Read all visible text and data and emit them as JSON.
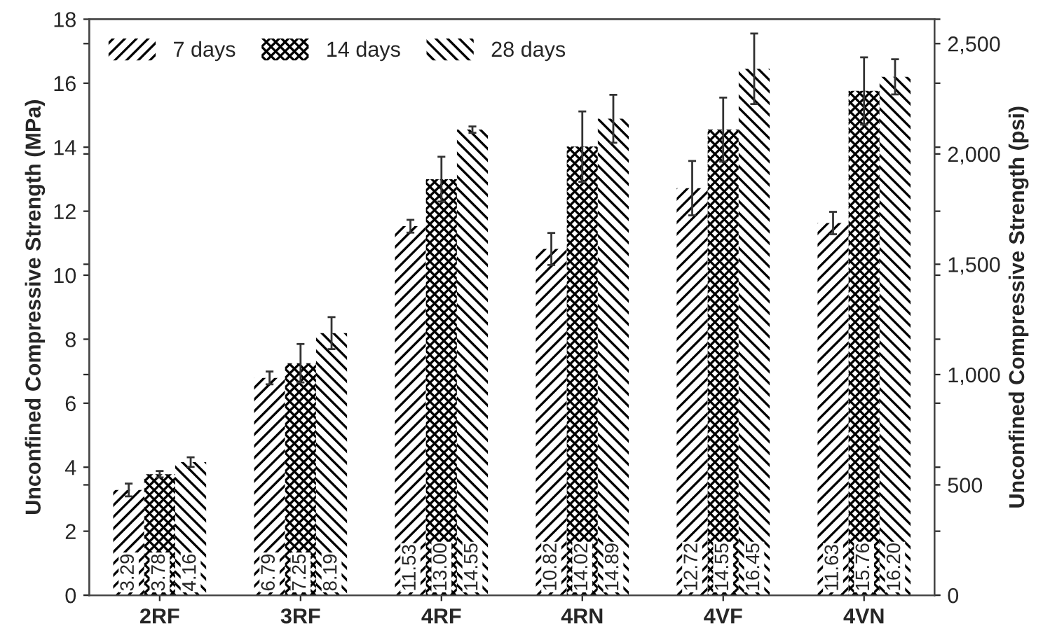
{
  "chart_data": {
    "type": "bar",
    "categories": [
      "2RF",
      "3RF",
      "4RF",
      "4RN",
      "4VF",
      "4VN"
    ],
    "ylabel": "Unconfined Compressive Strength (MPa)",
    "y2label": "Unconfined Compressive Strength (psi)",
    "ylim": [
      0,
      18
    ],
    "yticks": [
      0,
      2,
      4,
      6,
      8,
      10,
      12,
      14,
      16,
      18
    ],
    "y2lim": [
      0,
      2610.7
    ],
    "y2ticks": [
      0,
      {
        "value": 500,
        "label": "500"
      },
      {
        "value": 1000,
        "label": "1,000"
      },
      {
        "value": 1500,
        "label": "1,500"
      },
      {
        "value": 2000,
        "label": "2,000"
      },
      {
        "value": 2500,
        "label": "2,500"
      }
    ],
    "grid": false,
    "legend": "top left",
    "series": [
      {
        "name": "7 days",
        "color": "#000000",
        "values": [
          3.29,
          6.79,
          11.53,
          10.82,
          12.72,
          11.63
        ],
        "errors": [
          0.2,
          0.2,
          0.2,
          0.5,
          0.85,
          0.35
        ],
        "value_labels": [
          "3.29",
          "6.79",
          "11.53",
          "10.82",
          "12.72",
          "11.63"
        ]
      },
      {
        "name": "14 days",
        "color": "#000000",
        "values": [
          3.78,
          7.25,
          13.0,
          14.02,
          14.55,
          15.76
        ],
        "errors": [
          0.1,
          0.6,
          0.7,
          1.1,
          1.0,
          1.05
        ],
        "value_labels": [
          "3.78",
          "7.25",
          "13.00",
          "14.02",
          "14.55",
          "15.76"
        ]
      },
      {
        "name": "28 days",
        "color": "#000000",
        "values": [
          4.16,
          8.19,
          14.55,
          14.89,
          16.45,
          16.2
        ],
        "errors": [
          0.15,
          0.5,
          0.1,
          0.75,
          1.1,
          0.55
        ],
        "value_labels": [
          "4.16",
          "8.19",
          "14.55",
          "14.89",
          "16.45",
          "16.20"
        ]
      }
    ]
  }
}
